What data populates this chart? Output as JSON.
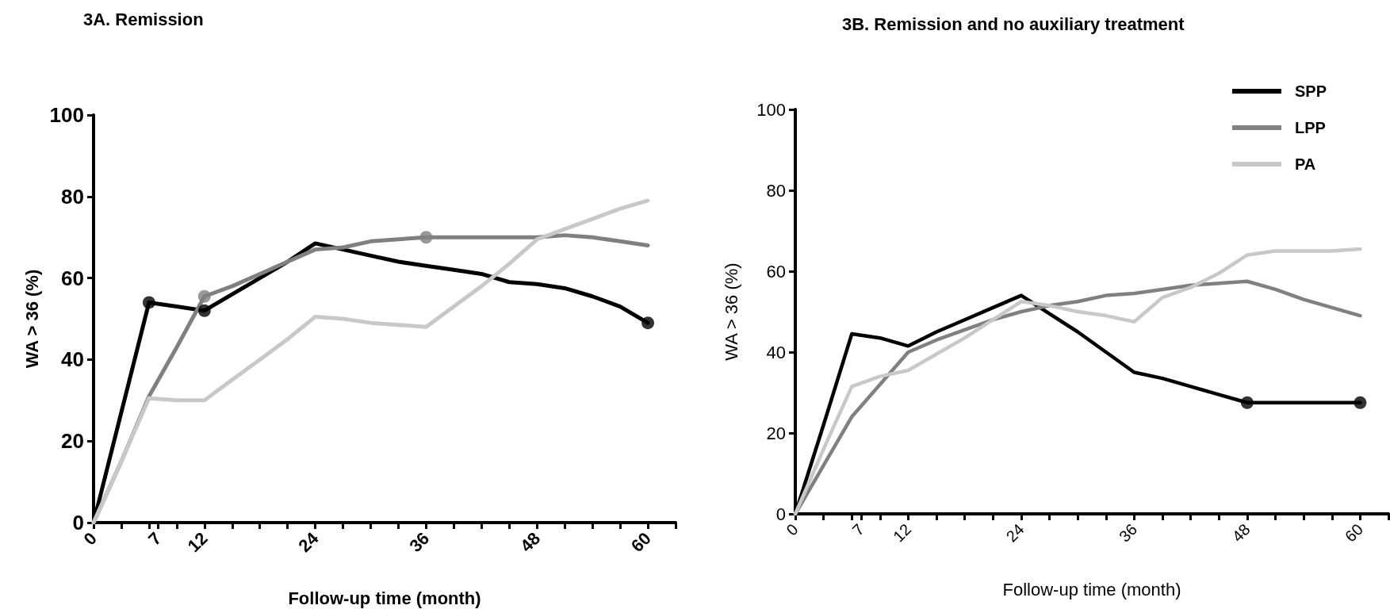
{
  "chart_data": [
    {
      "type": "line",
      "title": "3A. Remission",
      "xlabel": "Follow-up time (month)",
      "ylabel": "WA > 36 (%)",
      "marker": "none",
      "x": [
        0,
        3,
        6,
        9,
        12,
        15,
        18,
        21,
        24,
        27,
        30,
        33,
        36,
        39,
        42,
        45,
        48,
        51,
        54,
        57,
        60
      ],
      "xlim": [
        0,
        63
      ],
      "xticks": [
        {
          "value": 0,
          "label": "0"
        },
        {
          "value": 3,
          "label": null
        },
        {
          "value": 6,
          "label": null
        },
        {
          "value": 7,
          "label": "7"
        },
        {
          "value": 9,
          "label": null
        },
        {
          "value": 12,
          "label": "12"
        },
        {
          "value": 15,
          "label": null
        },
        {
          "value": 18,
          "label": null
        },
        {
          "value": 21,
          "label": null
        },
        {
          "value": 24,
          "label": "24"
        },
        {
          "value": 27,
          "label": null
        },
        {
          "value": 30,
          "label": null
        },
        {
          "value": 33,
          "label": null
        },
        {
          "value": 36,
          "label": "36"
        },
        {
          "value": 39,
          "label": null
        },
        {
          "value": 42,
          "label": null
        },
        {
          "value": 45,
          "label": null
        },
        {
          "value": 48,
          "label": "48"
        },
        {
          "value": 51,
          "label": null
        },
        {
          "value": 54,
          "label": null
        },
        {
          "value": 57,
          "label": null
        },
        {
          "value": 60,
          "label": "60"
        },
        {
          "value": 63,
          "label": null
        }
      ],
      "ylim": [
        0,
        100
      ],
      "yticks": [
        0,
        20,
        40,
        60,
        80,
        100
      ],
      "series": [
        {
          "color": "#000000",
          "values": [
            0,
            27,
            54,
            53,
            52,
            56,
            60,
            64,
            68.5,
            67,
            65.5,
            64,
            63,
            62,
            61,
            59,
            58.5,
            57.5,
            55.5,
            53,
            49
          ]
        },
        {
          "color": "#808080",
          "values": [
            0,
            15,
            31,
            43,
            55.5,
            58,
            61,
            64,
            67,
            67.5,
            69,
            69.5,
            70,
            70,
            70,
            70,
            70,
            70.5,
            70,
            69,
            68
          ]
        },
        {
          "color": "#c8c8c8",
          "values": [
            0,
            15,
            30.5,
            30,
            30,
            35,
            40,
            45,
            50.5,
            50,
            49,
            48.5,
            48,
            53,
            58,
            63.5,
            69.5,
            72,
            74.5,
            77,
            79
          ]
        },
        {
          "type": "scatter",
          "marker": "circle",
          "color": "#000000",
          "x": [
            6,
            12,
            60
          ],
          "values": [
            54,
            52,
            49
          ]
        },
        {
          "type": "scatter",
          "marker": "circle",
          "color": "#808080",
          "x": [
            12,
            36
          ],
          "values": [
            55.5,
            70
          ]
        }
      ]
    },
    {
      "type": "line",
      "title": "3B. Remission and no auxiliary treatment",
      "xlabel": "Follow-up time (month)",
      "ylabel": "WA > 36 (%)",
      "marker": "none",
      "legend": "top right",
      "x": [
        0,
        3,
        6,
        9,
        12,
        15,
        18,
        21,
        24,
        27,
        30,
        33,
        36,
        39,
        42,
        45,
        48,
        51,
        54,
        57,
        60
      ],
      "xlim": [
        0,
        63
      ],
      "xticks": [
        {
          "value": 0,
          "label": "0"
        },
        {
          "value": 3,
          "label": null
        },
        {
          "value": 6,
          "label": null
        },
        {
          "value": 7,
          "label": "7"
        },
        {
          "value": 9,
          "label": null
        },
        {
          "value": 12,
          "label": "12"
        },
        {
          "value": 15,
          "label": null
        },
        {
          "value": 18,
          "label": null
        },
        {
          "value": 21,
          "label": null
        },
        {
          "value": 24,
          "label": "24"
        },
        {
          "value": 27,
          "label": null
        },
        {
          "value": 30,
          "label": null
        },
        {
          "value": 33,
          "label": null
        },
        {
          "value": 36,
          "label": "36"
        },
        {
          "value": 39,
          "label": null
        },
        {
          "value": 42,
          "label": null
        },
        {
          "value": 45,
          "label": null
        },
        {
          "value": 48,
          "label": "48"
        },
        {
          "value": 51,
          "label": null
        },
        {
          "value": 54,
          "label": null
        },
        {
          "value": 57,
          "label": null
        },
        {
          "value": 60,
          "label": "60"
        },
        {
          "value": 63,
          "label": null
        }
      ],
      "ylim": [
        0,
        100
      ],
      "yticks": [
        0,
        20,
        40,
        60,
        80,
        100
      ],
      "series": [
        {
          "name": "SPP",
          "color": "#000000",
          "values": [
            0,
            22,
            44.5,
            43.5,
            41.5,
            45,
            48,
            51,
            54,
            49.5,
            45,
            40,
            35,
            33.5,
            31.5,
            29.5,
            27.5,
            27.5,
            27.5,
            27.5,
            27.5
          ]
        },
        {
          "name": "LPP",
          "color": "#808080",
          "values": [
            0,
            12,
            24,
            32,
            40,
            43,
            45.5,
            48,
            50,
            51.5,
            52.5,
            54,
            54.5,
            55.5,
            56.5,
            57,
            57.5,
            55.5,
            53,
            51,
            49
          ]
        },
        {
          "name": "PA",
          "color": "#c8c8c8",
          "values": [
            0,
            16,
            31.5,
            34,
            35.5,
            39.5,
            43.5,
            48,
            52.5,
            51.5,
            50,
            49,
            47.5,
            53.5,
            56,
            59.5,
            64,
            65,
            65,
            65,
            65.5
          ]
        },
        {
          "type": "scatter",
          "marker": "circle",
          "color": "#000000",
          "x": [
            48,
            60
          ],
          "values": [
            27.5,
            27.5
          ]
        }
      ]
    }
  ]
}
